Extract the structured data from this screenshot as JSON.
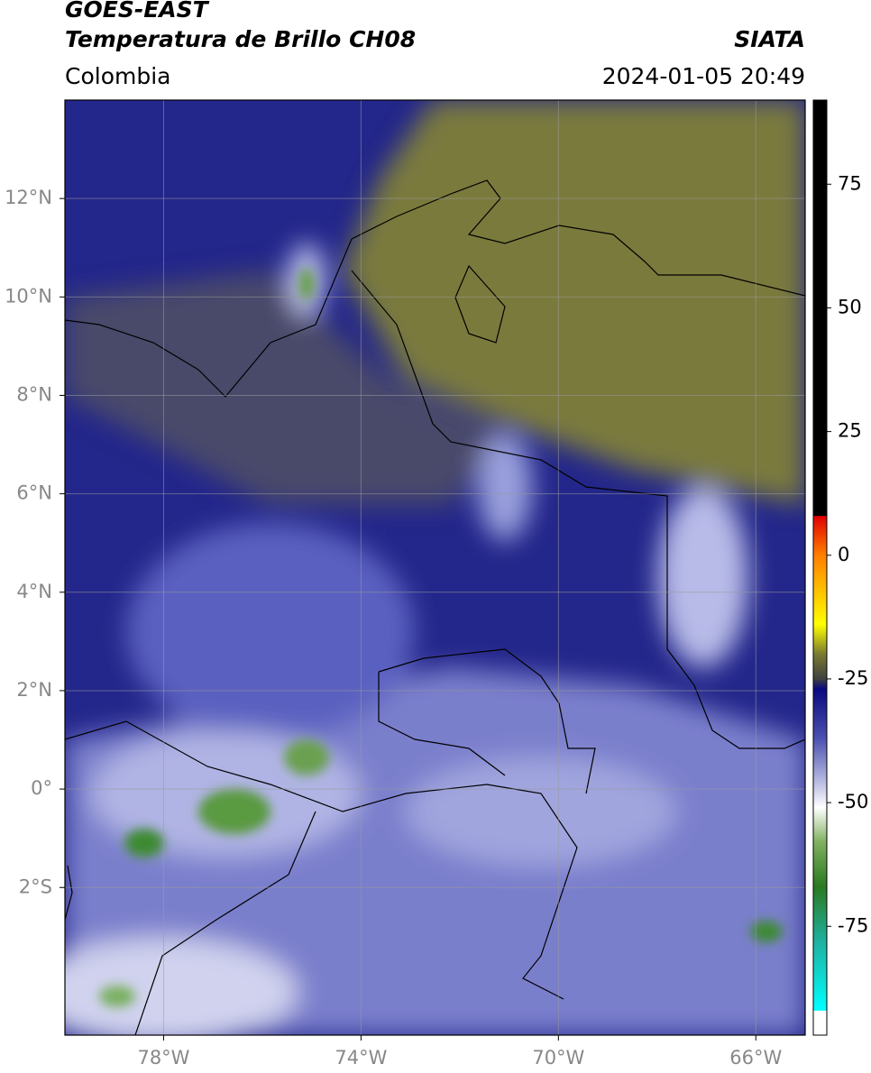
{
  "chart_data": {
    "type": "map",
    "title": "GOES-EAST",
    "subtitle": "Temperatura de Brillo CH08",
    "source": "SIATA",
    "region": "Colombia",
    "datetime": "2024-01-05 20:49",
    "xlim": [
      -80,
      -65
    ],
    "ylim": [
      -5,
      14
    ],
    "xticks": [
      {
        "value": -78,
        "label": "78°W"
      },
      {
        "value": -74,
        "label": "74°W"
      },
      {
        "value": -70,
        "label": "70°W"
      },
      {
        "value": -66,
        "label": "66°W"
      }
    ],
    "yticks": [
      {
        "value": 12,
        "label": "12°N"
      },
      {
        "value": 10,
        "label": "10°N"
      },
      {
        "value": 8,
        "label": "8°N"
      },
      {
        "value": 6,
        "label": "6°N"
      },
      {
        "value": 4,
        "label": "4°N"
      },
      {
        "value": 2,
        "label": "2°N"
      },
      {
        "value": 0,
        "label": "0°"
      },
      {
        "value": -2,
        "label": "2°S"
      }
    ],
    "grid": true,
    "colorbar": {
      "clim": [
        -97,
        92
      ],
      "ticks": [
        75,
        50,
        25,
        0,
        -25,
        -50,
        -75
      ],
      "colormap": [
        {
          "value": 92,
          "color": "#000000"
        },
        {
          "value": 8,
          "color": "#000000"
        },
        {
          "value": 7.9,
          "color": "#e00000"
        },
        {
          "value": 0,
          "color": "#ff7f00"
        },
        {
          "value": -14,
          "color": "#ffff00"
        },
        {
          "value": -20,
          "color": "#7a7a30"
        },
        {
          "value": -25,
          "color": "#404040"
        },
        {
          "value": -27,
          "color": "#0a0a80"
        },
        {
          "value": -37,
          "color": "#4a50b0"
        },
        {
          "value": -47,
          "color": "#c8cae8"
        },
        {
          "value": -51,
          "color": "#ffffff"
        },
        {
          "value": -58,
          "color": "#80b060"
        },
        {
          "value": -67,
          "color": "#2a7a20"
        },
        {
          "value": -78,
          "color": "#20b0a0"
        },
        {
          "value": -92,
          "color": "#00ffff"
        },
        {
          "value": -92.1,
          "color": "#ffffff"
        },
        {
          "value": -97,
          "color": "#ffffff"
        }
      ]
    }
  }
}
